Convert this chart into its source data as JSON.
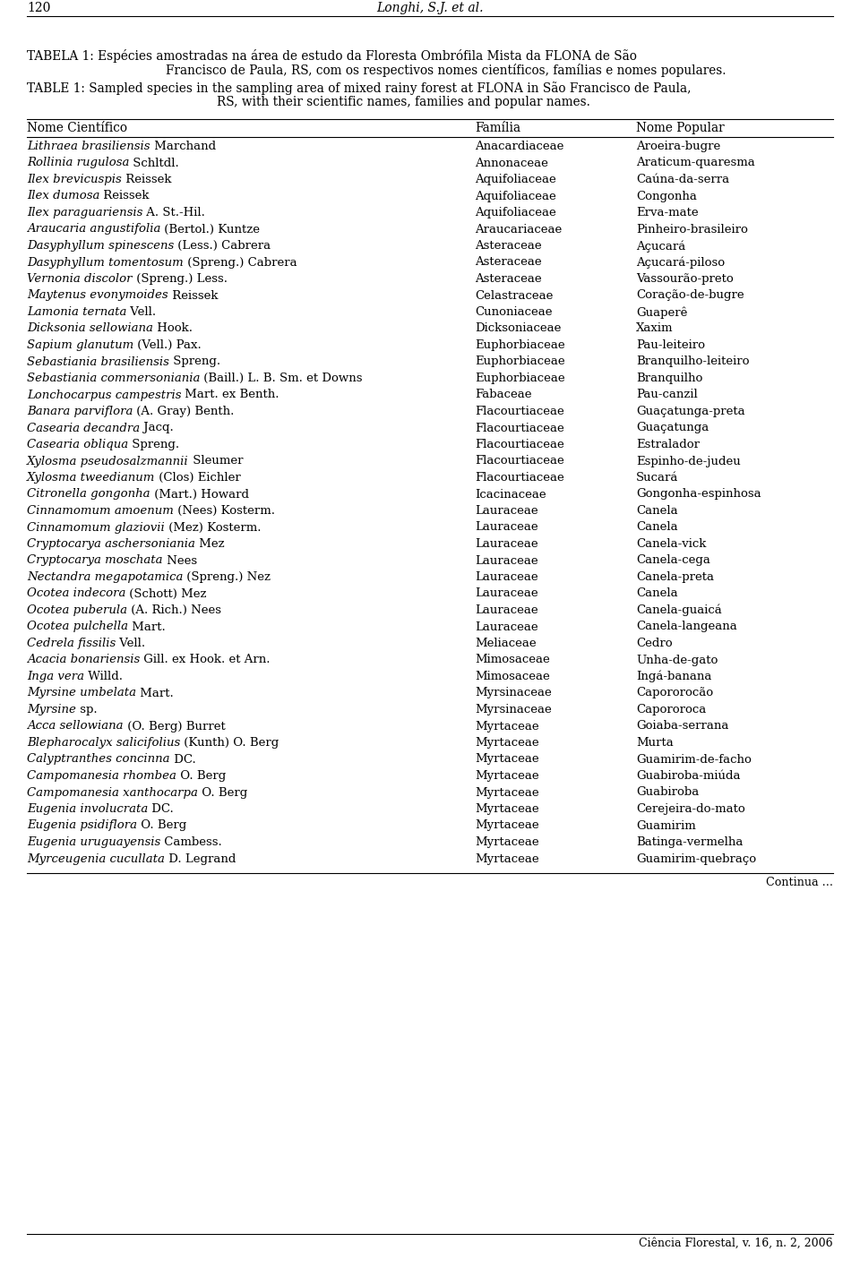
{
  "page_number": "120",
  "page_header": "Longhi, S.J. et al.",
  "caption_pt_line1": "TABELA 1: Espécies amostradas na área de estudo da Floresta Ombrófila Mista da FLONA de São",
  "caption_pt_line2": "Francisco de Paula, RS, com os respectivos nomes científicos, famílias e nomes populares.",
  "caption_en_line1": "TABLE 1: Sampled species in the sampling area of mixed rainy forest at FLONA in São Francisco de Paula,",
  "caption_en_line2": "RS, with their scientific names, families and popular names.",
  "col_headers": [
    "Nome Científico",
    "Família",
    "Nome Popular"
  ],
  "rows": [
    [
      [
        "$Lithraea brasiliensis$",
        " Marchand"
      ],
      "Anacardiaceae",
      "Aroeira-bugre"
    ],
    [
      [
        "$Rollinia rugulosa$",
        " Schltdl."
      ],
      "Annonaceae",
      "Araticum-quaresma"
    ],
    [
      [
        "$Ilex brevicuspis$",
        " Reissek"
      ],
      "Aquifoliaceae",
      "Caúna-da-serra"
    ],
    [
      [
        "$Ilex dumosa$",
        " Reissek"
      ],
      "Aquifoliaceae",
      "Congonha"
    ],
    [
      [
        "$Ilex paraguariensis$",
        " A. St.-Hil."
      ],
      "Aquifoliaceae",
      "Erva-mate"
    ],
    [
      [
        "$Araucaria angustifolia$",
        " (Bertol.) Kuntze"
      ],
      "Araucariaceae",
      "Pinheiro-brasileiro"
    ],
    [
      [
        "$Dasyphyllum spinescens$",
        " (Less.) Cabrera"
      ],
      "Asteraceae",
      "Açucará"
    ],
    [
      [
        "$Dasyphyllum tomentosum$",
        " (Spreng.) Cabrera"
      ],
      "Asteraceae",
      "Açucará-piloso"
    ],
    [
      [
        "$Vernonia discolor$",
        " (Spreng.) Less."
      ],
      "Asteraceae",
      "Vassourão-preto"
    ],
    [
      [
        "$Maytenus evonymoides$",
        " Reissek"
      ],
      "Celastraceae",
      "Coração-de-bugre"
    ],
    [
      [
        "$Lamonia ternata$",
        " Vell."
      ],
      "Cunoniaceae",
      "Guaperê"
    ],
    [
      [
        "$Dicksonia sellowiana$",
        " Hook."
      ],
      "Dicksoniaceae",
      "Xaxim"
    ],
    [
      [
        "$Sapium glanutum$",
        " (Vell.) Pax."
      ],
      "Euphorbiaceae",
      "Pau-leiteiro"
    ],
    [
      [
        "$Sebastiania brasiliensis$",
        " Spreng."
      ],
      "Euphorbiaceae",
      "Branquilho-leiteiro"
    ],
    [
      [
        "$Sebastiania commersoniania$",
        " (Baill.) L. B. Sm. et Downs"
      ],
      "Euphorbiaceae",
      "Branquilho"
    ],
    [
      [
        "$Lonchocarpus campestris$",
        " Mart. ex Benth."
      ],
      "Fabaceae",
      "Pau-canzil"
    ],
    [
      [
        "$Banara parviflora$",
        " (A. Gray) Benth."
      ],
      "Flacourtiaceae",
      "Guaçatunga-preta"
    ],
    [
      [
        "$Casearia decandra$",
        " Jacq."
      ],
      "Flacourtiaceae",
      "Guaçatunga"
    ],
    [
      [
        "$Casearia obliqua$",
        " Spreng."
      ],
      "Flacourtiaceae",
      "Estralador"
    ],
    [
      [
        "$Xylosma pseudosalzmannii$",
        " Sleumer"
      ],
      "Flacourtiaceae",
      "Espinho-de-judeu"
    ],
    [
      [
        "$Xylosma tweedianum$",
        " (Clos) Eichler"
      ],
      "Flacourtiaceae",
      "Sucará"
    ],
    [
      [
        "$Citronella gongonha$",
        " (Mart.) Howard"
      ],
      "Icacinaceae",
      "Gongonha-espinhosa"
    ],
    [
      [
        "$Cinnamomum amoenum$",
        " (Nees) Kosterm."
      ],
      "Lauraceae",
      "Canela"
    ],
    [
      [
        "$Cinnamomum glaziovii$",
        " (Mez) Kosterm."
      ],
      "Lauraceae",
      "Canela"
    ],
    [
      [
        "$Cryptocarya aschersoniania$",
        " Mez"
      ],
      "Lauraceae",
      "Canela-vick"
    ],
    [
      [
        "$Cryptocarya moschata$",
        " Nees"
      ],
      "Lauraceae",
      "Canela-cega"
    ],
    [
      [
        "$Nectandra megapotamica$",
        " (Spreng.) Nez"
      ],
      "Lauraceae",
      "Canela-preta"
    ],
    [
      [
        "$Ocotea indecora$",
        " (Schott) Mez"
      ],
      "Lauraceae",
      "Canela"
    ],
    [
      [
        "$Ocotea puberula$",
        " (A. Rich.) Nees"
      ],
      "Lauraceae",
      "Canela-guaicá"
    ],
    [
      [
        "$Ocotea pulchella$",
        " Mart."
      ],
      "Lauraceae",
      "Canela-langeana"
    ],
    [
      [
        "$Cedrela fissilis$",
        " Vell."
      ],
      "Meliaceae",
      "Cedro"
    ],
    [
      [
        "$Acacia bonariensis$",
        " Gill. ex Hook. et Arn."
      ],
      "Mimosaceae",
      "Unha-de-gato"
    ],
    [
      [
        "$Inga vera$",
        " Willd."
      ],
      "Mimosaceae",
      "Ingá-banana"
    ],
    [
      [
        "$Myrsine umbelata$",
        " Mart."
      ],
      "Myrsinaceae",
      "Capororocão"
    ],
    [
      [
        "$Myrsine$",
        " sp."
      ],
      "Myrsinaceae",
      "Capororoca"
    ],
    [
      [
        "$Acca sellowiana$",
        " (O. Berg) Burret"
      ],
      "Myrtaceae",
      "Goiaba-serrana"
    ],
    [
      [
        "$Blepharocalyx salicifolius$",
        " (Kunth) O. Berg"
      ],
      "Myrtaceae",
      "Murta"
    ],
    [
      [
        "$Calyptranthes concinna$",
        " DC."
      ],
      "Myrtaceae",
      "Guamirim-de-facho"
    ],
    [
      [
        "$Campomanesia rhombea$",
        " O. Berg"
      ],
      "Myrtaceae",
      "Guabiroba-miúda"
    ],
    [
      [
        "$Campomanesia xanthocarpa$",
        " O. Berg"
      ],
      "Myrtaceae",
      "Guabiroba"
    ],
    [
      [
        "$Eugenia involucrata$",
        " DC."
      ],
      "Myrtaceae",
      "Cerejeira-do-mato"
    ],
    [
      [
        "$Eugenia psidiflora$",
        " O. Berg"
      ],
      "Myrtaceae",
      "Guamirim"
    ],
    [
      [
        "$Eugenia uruguayensis$",
        " Cambess."
      ],
      "Myrtaceae",
      "Batinga-vermelha"
    ],
    [
      [
        "$Myrceugenia cucullata$",
        " D. Legrand"
      ],
      "Myrtaceae",
      "Guamirim-quebraço"
    ]
  ],
  "footer_text": "Continua ...",
  "bottom_text": "Ciência Florestal, v. 16, n. 2, 2006",
  "background_color": "#ffffff",
  "text_color": "#000000",
  "font_size": 9.5,
  "caption_font_size": 9.8,
  "header_font_size": 9.8
}
